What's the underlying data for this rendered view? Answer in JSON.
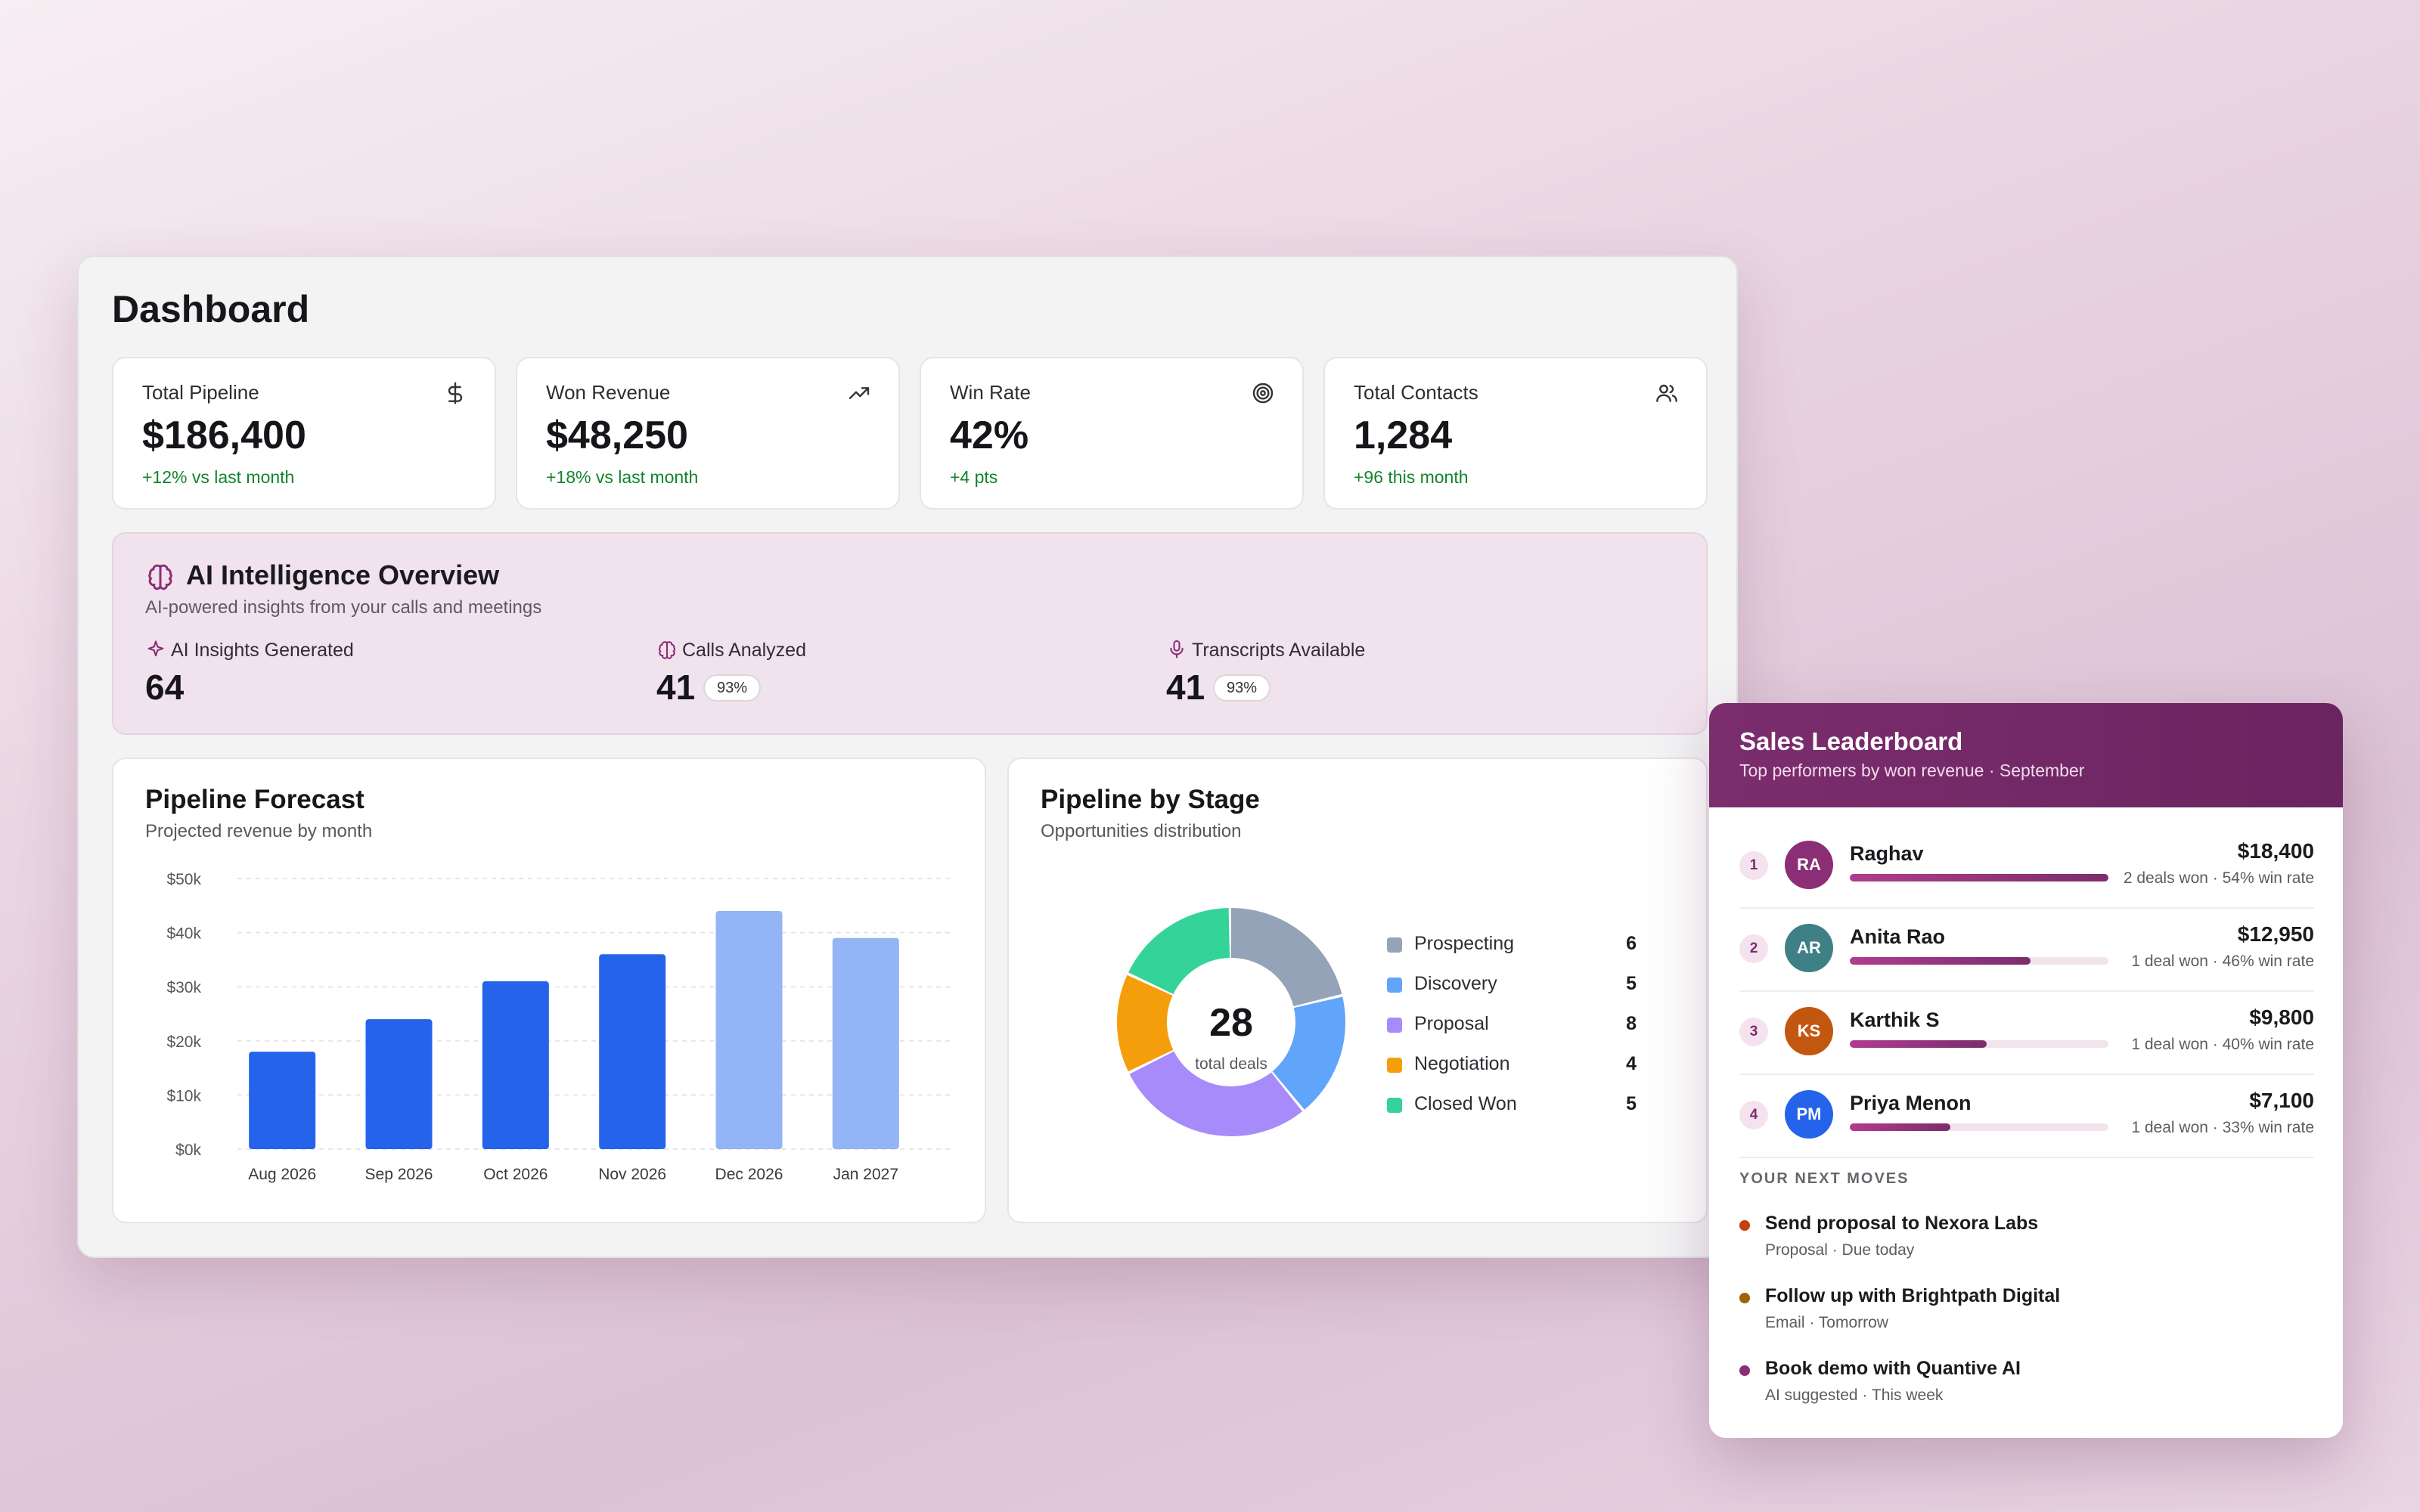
{
  "dashboard": {
    "title": "Dashboard",
    "kpis": [
      {
        "label": "Total Pipeline",
        "value": "$186,400",
        "delta": "+12% vs last month",
        "icon": "dollar-icon"
      },
      {
        "label": "Won Revenue",
        "value": "$48,250",
        "delta": "+18% vs last month",
        "icon": "trending-up-icon"
      },
      {
        "label": "Win Rate",
        "value": "42%",
        "delta": "+4 pts",
        "icon": "target-icon"
      },
      {
        "label": "Total Contacts",
        "value": "1,284",
        "delta": "+96 this month",
        "icon": "users-icon"
      }
    ],
    "ai_overview": {
      "title": "AI Intelligence Overview",
      "subtitle": "AI-powered insights from your calls and meetings",
      "stats": [
        {
          "label": "AI Insights Generated",
          "value": "64",
          "icon": "sparkle-icon"
        },
        {
          "label": "Calls Analyzed",
          "value": "41",
          "badge": "93%",
          "icon": "brain-icon"
        },
        {
          "label": "Transcripts Available",
          "value": "41",
          "badge": "93%",
          "icon": "microphone-icon"
        }
      ]
    },
    "forecast": {
      "title": "Pipeline Forecast",
      "subtitle": "Projected revenue by month"
    },
    "by_stage": {
      "title": "Pipeline by Stage",
      "subtitle": "Opportunities distribution",
      "center_value": "28",
      "center_label": "total deals"
    }
  },
  "chart_data": [
    {
      "type": "bar",
      "categories": [
        "Aug 2026",
        "Sep 2026",
        "Oct 2026",
        "Nov 2026",
        "Dec 2026",
        "Jan 2027"
      ],
      "values": [
        18000,
        24000,
        31000,
        36000,
        44000,
        39000
      ],
      "projected": [
        false,
        false,
        false,
        false,
        true,
        true
      ],
      "yticks": [
        "$0k",
        "$10k",
        "$20k",
        "$30k",
        "$40k",
        "$50k"
      ],
      "ylim": [
        0,
        50000
      ],
      "colors": {
        "actual": "#2563eb",
        "projected": "#93b4f5"
      }
    },
    {
      "type": "pie",
      "labels": [
        "Prospecting",
        "Discovery",
        "Proposal",
        "Negotiation",
        "Closed Won"
      ],
      "values": [
        6,
        5,
        8,
        4,
        5
      ],
      "colors": [
        "#94a3b8",
        "#60a5fa",
        "#a78bfa",
        "#f59e0b",
        "#34d399"
      ]
    }
  ],
  "leaderboard": {
    "title": "Sales Leaderboard",
    "subtitle": "Top performers by won revenue · September",
    "rows": [
      {
        "rank": "1",
        "initials": "RA",
        "name": "Raghav",
        "amount": "$18,400",
        "meta": "2 deals won · 54% win rate",
        "progress": 1.0,
        "color": "#8b2e76"
      },
      {
        "rank": "2",
        "initials": "AR",
        "name": "Anita Rao",
        "amount": "$12,950",
        "meta": "1 deal won · 46% win rate",
        "progress": 0.7,
        "color": "#3f7f86"
      },
      {
        "rank": "3",
        "initials": "KS",
        "name": "Karthik S",
        "amount": "$9,800",
        "meta": "1 deal won · 40% win rate",
        "progress": 0.53,
        "color": "#c2570f"
      },
      {
        "rank": "4",
        "initials": "PM",
        "name": "Priya Menon",
        "amount": "$7,100",
        "meta": "1 deal won · 33% win rate",
        "progress": 0.39,
        "color": "#2563eb"
      }
    ],
    "moves_heading": "YOUR NEXT MOVES",
    "moves": [
      {
        "title": "Send proposal to Nexora Labs",
        "sub": "Proposal · Due today",
        "color": "#c2410c"
      },
      {
        "title": "Follow up with Brightpath Digital",
        "sub": "Email · Tomorrow",
        "color": "#a16207"
      },
      {
        "title": "Book demo with Quantive AI",
        "sub": "AI suggested · This week",
        "color": "#8b2e76"
      }
    ]
  }
}
